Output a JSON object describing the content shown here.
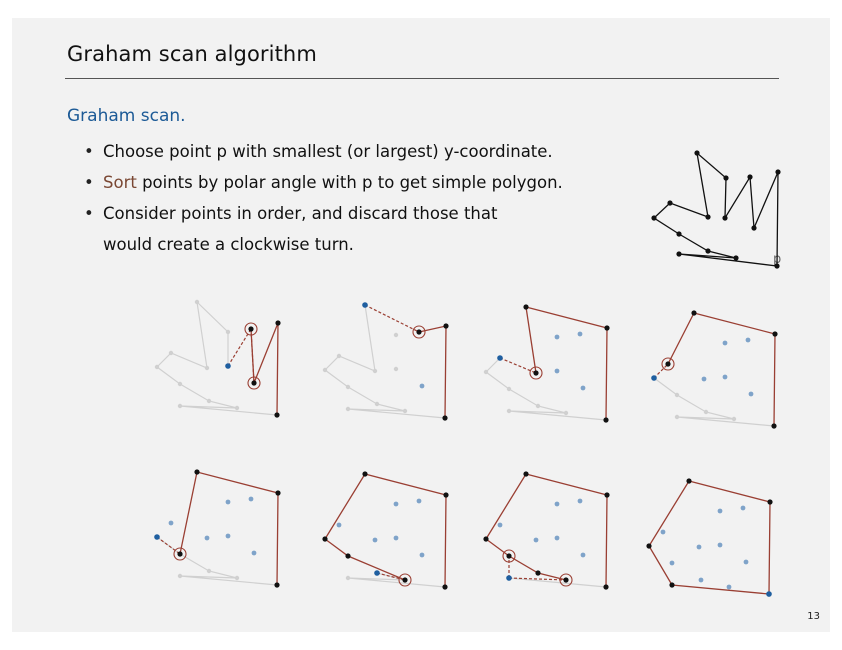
{
  "slide": {
    "title": "Graham scan algorithm",
    "heading": "Graham scan.",
    "bullets": [
      {
        "pre": "",
        "highlight": "",
        "post": "Choose point p with smallest (or largest) y-coordinate."
      },
      {
        "pre": "",
        "highlight": "Sort",
        "post": " points by polar angle with p to get simple polygon."
      },
      {
        "pre": "",
        "highlight": "",
        "post": "Consider points in order, and discard those that",
        "cont": "would create a clockwise turn."
      }
    ],
    "p_label": "p",
    "page_number": "13"
  },
  "colors": {
    "background": "#f2f2f2",
    "heading": "#1c5a96",
    "sort_word": "#7a4733",
    "hull_edge": "#9a3f33",
    "inactive": "#d0d0d0",
    "processed_point": "#7fa3c9",
    "current_point": "#1f5fa0",
    "black": "#111111"
  }
}
